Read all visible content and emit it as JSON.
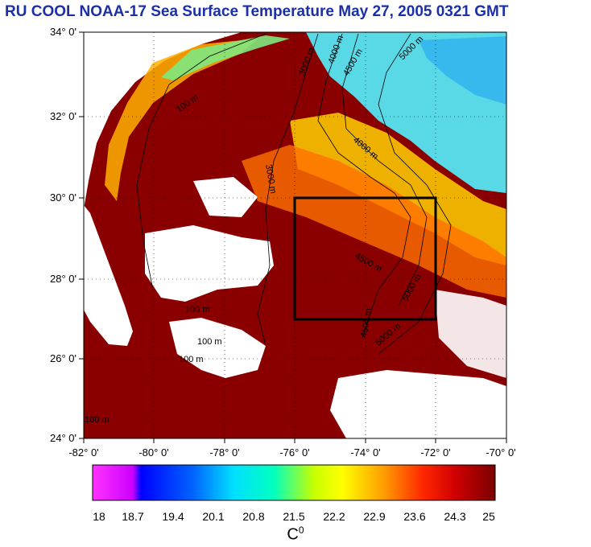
{
  "title": "RU COOL  NOAA-17 Sea Surface Temperature May 27, 2005 0321 GMT",
  "map": {
    "lat_ticks": [
      "24° 0'",
      "26° 0'",
      "28° 0'",
      "30° 0'",
      "32° 0'",
      "34° 0'"
    ],
    "lon_ticks": [
      "-82° 0'",
      "-80° 0'",
      "-78° 0'",
      "-76° 0'",
      "-74° 0'",
      "-72° 0'",
      "-70° 0'"
    ],
    "lat_range": [
      24,
      34
    ],
    "lon_range": [
      -82,
      -70
    ],
    "grid": true,
    "box": {
      "lon_min": -76,
      "lon_max": -72,
      "lat_min": 27,
      "lat_max": 30
    },
    "contour_labels": [
      "100 m",
      "3000 m",
      "4000 m",
      "4500 m",
      "5000 m"
    ]
  },
  "colorbar": {
    "ticks": [
      "18",
      "18.7",
      "19.4",
      "20.1",
      "20.8",
      "21.5",
      "22.2",
      "22.9",
      "23.6",
      "24.3",
      "25"
    ],
    "range": [
      18,
      25
    ],
    "unit_base": "C",
    "unit_sup": "0",
    "colors": [
      "#ff33ff",
      "#0000ff",
      "#00c8ff",
      "#00ffd8",
      "#c8ff00",
      "#ffff00",
      "#ffa000",
      "#ff3000",
      "#ff0000",
      "#880000"
    ]
  }
}
